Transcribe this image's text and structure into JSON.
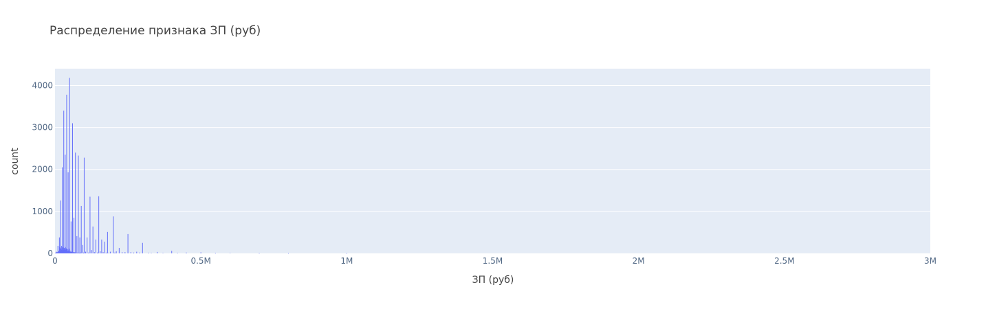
{
  "chart_data": {
    "type": "bar",
    "title": "Распределение признака ЗП (руб)",
    "xlabel": "ЗП (руб)",
    "ylabel": "count",
    "xlim": [
      0,
      3000000
    ],
    "ylim": [
      0,
      4400
    ],
    "x_tick_values": [
      0,
      500000,
      1000000,
      1500000,
      2000000,
      2500000,
      3000000
    ],
    "x_tick_labels": [
      "0",
      "0.5M",
      "1M",
      "1.5M",
      "2M",
      "2.5M",
      "3M"
    ],
    "y_tick_values": [
      0,
      1000,
      2000,
      3000,
      4000
    ],
    "y_tick_labels": [
      "0",
      "1000",
      "2000",
      "3000",
      "4000"
    ],
    "grid": true,
    "bar_color": "#636efa",
    "plot_bg": "#e5ecf6",
    "bins": [
      [
        2000,
        15
      ],
      [
        3000,
        20
      ],
      [
        5000,
        40
      ],
      [
        7000,
        25
      ],
      [
        8000,
        30
      ],
      [
        10000,
        180
      ],
      [
        12000,
        30
      ],
      [
        13000,
        60
      ],
      [
        14000,
        50
      ],
      [
        15000,
        380
      ],
      [
        16000,
        150
      ],
      [
        17000,
        60
      ],
      [
        18000,
        120
      ],
      [
        20000,
        1260
      ],
      [
        21000,
        100
      ],
      [
        22000,
        180
      ],
      [
        23000,
        90
      ],
      [
        24000,
        70
      ],
      [
        25000,
        2050
      ],
      [
        26000,
        160
      ],
      [
        27000,
        110
      ],
      [
        28000,
        140
      ],
      [
        29000,
        80
      ],
      [
        30000,
        3400
      ],
      [
        31000,
        100
      ],
      [
        32000,
        130
      ],
      [
        33000,
        70
      ],
      [
        34000,
        90
      ],
      [
        35000,
        2350
      ],
      [
        36000,
        150
      ],
      [
        37000,
        80
      ],
      [
        38000,
        120
      ],
      [
        39000,
        50
      ],
      [
        40000,
        3780
      ],
      [
        41000,
        90
      ],
      [
        42000,
        100
      ],
      [
        43000,
        60
      ],
      [
        44000,
        50
      ],
      [
        45000,
        1930
      ],
      [
        46000,
        70
      ],
      [
        47000,
        40
      ],
      [
        48000,
        110
      ],
      [
        49000,
        30
      ],
      [
        50000,
        4180
      ],
      [
        51000,
        40
      ],
      [
        52000,
        60
      ],
      [
        53000,
        30
      ],
      [
        54000,
        30
      ],
      [
        55000,
        760
      ],
      [
        56000,
        40
      ],
      [
        57000,
        25
      ],
      [
        58000,
        40
      ],
      [
        60000,
        3100
      ],
      [
        62000,
        30
      ],
      [
        64000,
        25
      ],
      [
        65000,
        850
      ],
      [
        67000,
        20
      ],
      [
        68000,
        30
      ],
      [
        70000,
        2400
      ],
      [
        72000,
        20
      ],
      [
        75000,
        410
      ],
      [
        78000,
        20
      ],
      [
        80000,
        2330
      ],
      [
        83000,
        15
      ],
      [
        85000,
        380
      ],
      [
        88000,
        20
      ],
      [
        90000,
        1130
      ],
      [
        95000,
        200
      ],
      [
        98000,
        20
      ],
      [
        100000,
        2280
      ],
      [
        105000,
        40
      ],
      [
        110000,
        380
      ],
      [
        115000,
        20
      ],
      [
        120000,
        1350
      ],
      [
        125000,
        80
      ],
      [
        130000,
        640
      ],
      [
        135000,
        30
      ],
      [
        140000,
        330
      ],
      [
        145000,
        20
      ],
      [
        150000,
        1360
      ],
      [
        155000,
        50
      ],
      [
        160000,
        330
      ],
      [
        165000,
        30
      ],
      [
        170000,
        280
      ],
      [
        175000,
        20
      ],
      [
        180000,
        510
      ],
      [
        185000,
        20
      ],
      [
        190000,
        40
      ],
      [
        200000,
        880
      ],
      [
        205000,
        20
      ],
      [
        210000,
        50
      ],
      [
        220000,
        130
      ],
      [
        230000,
        30
      ],
      [
        240000,
        30
      ],
      [
        250000,
        460
      ],
      [
        260000,
        30
      ],
      [
        270000,
        20
      ],
      [
        280000,
        40
      ],
      [
        290000,
        20
      ],
      [
        300000,
        250
      ],
      [
        320000,
        15
      ],
      [
        330000,
        10
      ],
      [
        350000,
        35
      ],
      [
        370000,
        10
      ],
      [
        400000,
        60
      ],
      [
        420000,
        8
      ],
      [
        450000,
        20
      ],
      [
        500000,
        25
      ],
      [
        550000,
        6
      ],
      [
        600000,
        10
      ],
      [
        700000,
        5
      ],
      [
        800000,
        4
      ],
      [
        1000000,
        3
      ]
    ]
  }
}
